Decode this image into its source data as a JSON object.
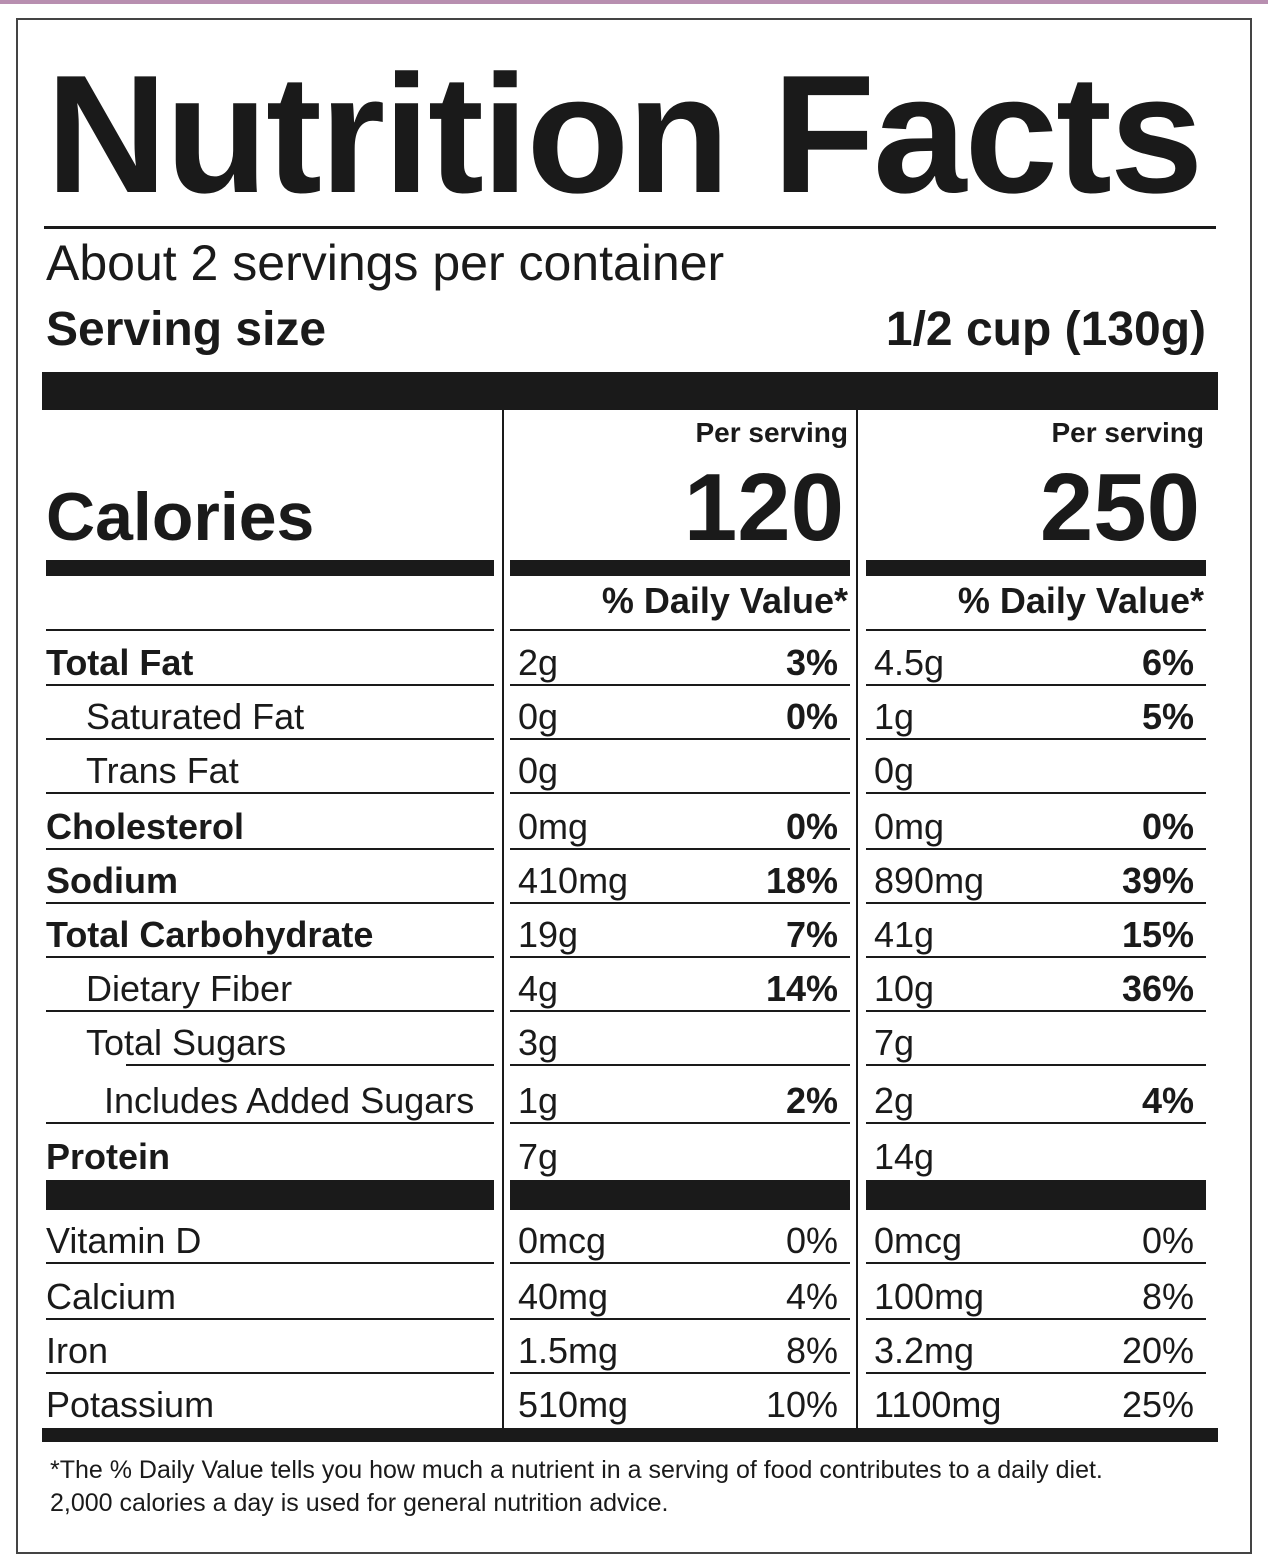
{
  "label": {
    "title": "Nutrition Facts",
    "servings_per_container": "About 2 servings per container",
    "serving_size_label": "Serving size",
    "serving_size_value": "1/2 cup (130g)",
    "calories_label": "Calories",
    "per_serving_1": "Per serving",
    "per_serving_2": "Per serving",
    "calories_1": "120",
    "calories_2": "250",
    "daily_value_header_1": "% Daily Value*",
    "daily_value_header_2": "% Daily Value*"
  },
  "nutrients": [
    {
      "name": "Total Fat",
      "amount_1": "2g",
      "pct_1": "3%",
      "amount_2": "4.5g",
      "pct_2": "6%"
    },
    {
      "name": "Saturated Fat",
      "amount_1": "0g",
      "pct_1": "0%",
      "amount_2": "1g",
      "pct_2": "5%"
    },
    {
      "name": "Trans Fat",
      "amount_1": "0g",
      "pct_1": "",
      "amount_2": "0g",
      "pct_2": ""
    },
    {
      "name": "Cholesterol",
      "amount_1": "0mg",
      "pct_1": "0%",
      "amount_2": "0mg",
      "pct_2": "0%"
    },
    {
      "name": "Sodium",
      "amount_1": "410mg",
      "pct_1": "18%",
      "amount_2": "890mg",
      "pct_2": "39%"
    },
    {
      "name": "Total Carbohydrate",
      "amount_1": "19g",
      "pct_1": "7%",
      "amount_2": "41g",
      "pct_2": "15%"
    },
    {
      "name": "Dietary Fiber",
      "amount_1": "4g",
      "pct_1": "14%",
      "amount_2": "10g",
      "pct_2": "36%"
    },
    {
      "name": "Total Sugars",
      "amount_1": "3g",
      "pct_1": "",
      "amount_2": "7g",
      "pct_2": ""
    },
    {
      "name": "Includes Added Sugars",
      "amount_1": "1g",
      "pct_1": "2%",
      "amount_2": "2g",
      "pct_2": "4%"
    },
    {
      "name": "Protein",
      "amount_1": "7g",
      "pct_1": "",
      "amount_2": "14g",
      "pct_2": ""
    }
  ],
  "vitamins": [
    {
      "name": "Vitamin D",
      "amount_1": "0mcg",
      "pct_1": "0%",
      "amount_2": "0mcg",
      "pct_2": "0%"
    },
    {
      "name": "Calcium",
      "amount_1": "40mg",
      "pct_1": "4%",
      "amount_2": "100mg",
      "pct_2": "8%"
    },
    {
      "name": "Iron",
      "amount_1": "1.5mg",
      "pct_1": "8%",
      "amount_2": "3.2mg",
      "pct_2": "20%"
    },
    {
      "name": "Potassium",
      "amount_1": "510mg",
      "pct_1": "10%",
      "amount_2": "1100mg",
      "pct_2": "25%"
    }
  ],
  "footnote": {
    "line1": "*The % Daily Value tells you how much a nutrient in a serving of food contributes to a daily diet.",
    "line2": "2,000 calories a day is used for general nutrition advice."
  }
}
